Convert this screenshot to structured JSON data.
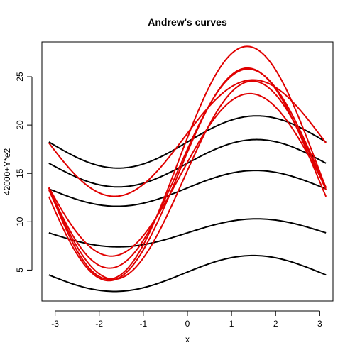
{
  "chart_data": {
    "type": "line",
    "title": "Andrew's curves",
    "xlabel": "x",
    "ylabel": "42000+Y*e2",
    "xlim": [
      -3.3,
      3.3
    ],
    "ylim": [
      1.8,
      28.6
    ],
    "x_ticks": [
      -3,
      -2,
      -1,
      0,
      1,
      2,
      3
    ],
    "y_ticks": [
      5,
      10,
      15,
      20,
      25
    ],
    "x_range": [
      -3.1416,
      3.1416
    ],
    "colors": {
      "black": "#000000",
      "red": "#e00000"
    },
    "curve_form": "y = a + b*sin(x) + c*cos(x)",
    "series": [
      {
        "color": "black",
        "a": 4.65,
        "b": 1.85,
        "c": 0.15
      },
      {
        "color": "black",
        "a": 8.85,
        "b": 1.45,
        "c": 0.0
      },
      {
        "color": "black",
        "a": 13.45,
        "b": 1.85,
        "c": 0.05
      },
      {
        "color": "black",
        "a": 16.05,
        "b": 2.45,
        "c": 0.0
      },
      {
        "color": "black",
        "a": 18.25,
        "b": 2.7,
        "c": 0.0
      },
      {
        "color": "red",
        "a": 16.1,
        "b": 11.75,
        "c": 2.6
      },
      {
        "color": "red",
        "a": 14.9,
        "b": 10.75,
        "c": 2.3
      },
      {
        "color": "red",
        "a": 15.5,
        "b": 10.1,
        "c": 2.0
      },
      {
        "color": "red",
        "a": 14.3,
        "b": 10.2,
        "c": 1.0
      },
      {
        "color": "red",
        "a": 14.85,
        "b": 8.3,
        "c": 1.3
      },
      {
        "color": "red",
        "a": 18.65,
        "b": 6.0,
        "c": 0.5
      }
    ]
  }
}
